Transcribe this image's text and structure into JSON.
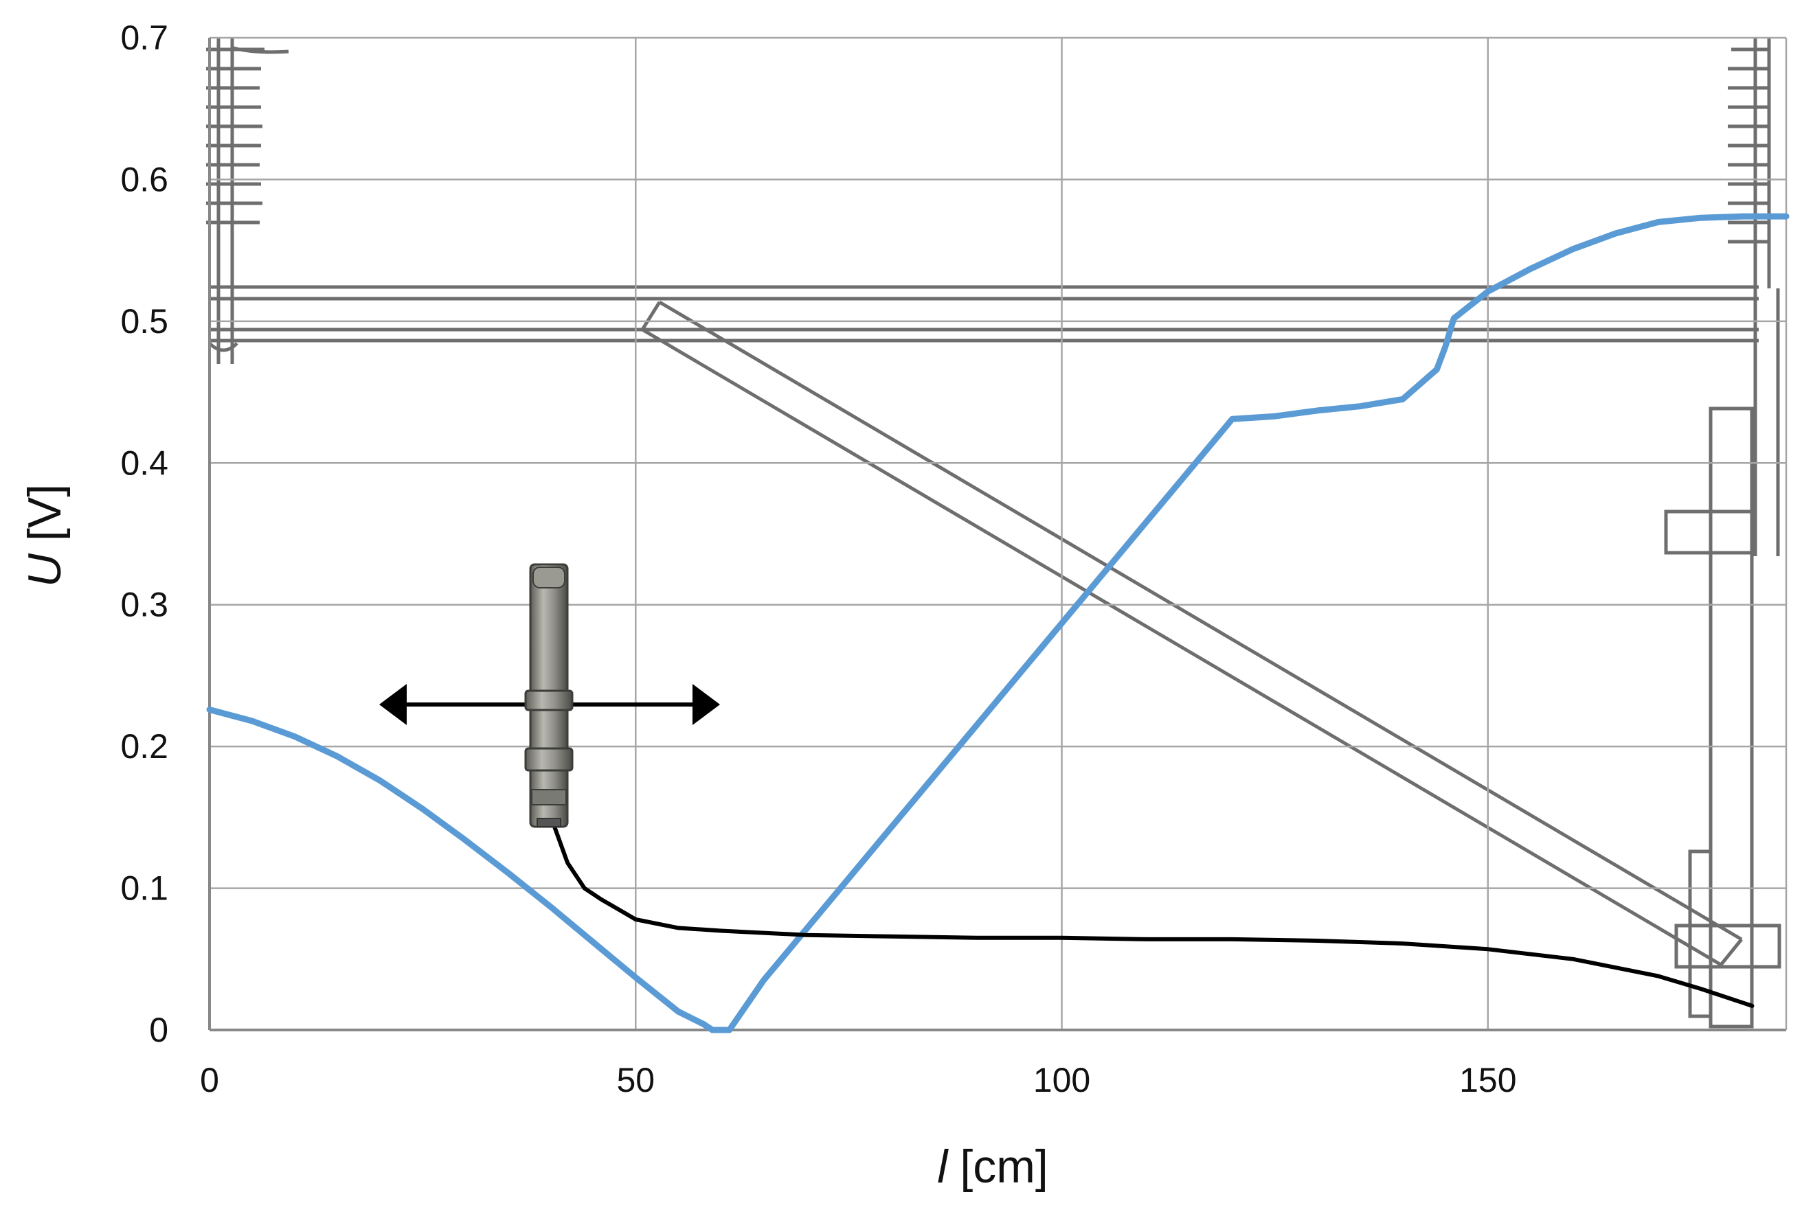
{
  "chart_data": {
    "type": "line",
    "title": "",
    "xlabel_symbol": "l",
    "xlabel_unit": "[cm]",
    "ylabel_symbol": "U",
    "ylabel_unit": "[V]",
    "xlim": [
      0,
      185
    ],
    "ylim": [
      0,
      0.7
    ],
    "x_ticks": [
      "0",
      "50",
      "100",
      "150"
    ],
    "x_tick_values": [
      0,
      50,
      100,
      150
    ],
    "y_ticks": [
      "0",
      "0.1",
      "0.2",
      "0.3",
      "0.4",
      "0.5",
      "0.6",
      "0.7"
    ],
    "y_tick_values": [
      0,
      0.1,
      0.2,
      0.3,
      0.4,
      0.5,
      0.6,
      0.7
    ],
    "grid": true,
    "series": [
      {
        "color": "#5b9bd5",
        "x": [
          0,
          5,
          10,
          15,
          20,
          25,
          30,
          35,
          40,
          45,
          50,
          55,
          58,
          59,
          60,
          61,
          65,
          70,
          75,
          80,
          85,
          90,
          95,
          100,
          105,
          110,
          115,
          120,
          125,
          130,
          135,
          140,
          144,
          145,
          146,
          150,
          155,
          160,
          165,
          170,
          175,
          180,
          185
        ],
        "y": [
          0.226,
          0.218,
          0.207,
          0.193,
          0.176,
          0.156,
          0.134,
          0.111,
          0.087,
          0.062,
          0.037,
          0.013,
          0.004,
          0.0,
          0.0,
          0.0,
          0.035,
          0.071,
          0.107,
          0.143,
          0.179,
          0.215,
          0.251,
          0.287,
          0.323,
          0.359,
          0.395,
          0.431,
          0.433,
          0.437,
          0.44,
          0.445,
          0.466,
          0.482,
          0.502,
          0.521,
          0.537,
          0.551,
          0.562,
          0.57,
          0.573,
          0.574,
          0.574
        ]
      },
      {
        "color": "#000000",
        "x": [
          40.5,
          42,
          44,
          46,
          48,
          50,
          55,
          60,
          70,
          80,
          90,
          100,
          110,
          120,
          130,
          140,
          150,
          160,
          170,
          175,
          181
        ],
        "y": [
          0.143,
          0.118,
          0.1,
          0.092,
          0.085,
          0.078,
          0.072,
          0.07,
          0.067,
          0.066,
          0.065,
          0.065,
          0.064,
          0.064,
          0.063,
          0.061,
          0.057,
          0.05,
          0.038,
          0.029,
          0.017
        ]
      }
    ]
  },
  "colors": {
    "grid": "#a6a6a6",
    "sketch": "#555555",
    "sensor_body": "#8e8e88",
    "arrow": "#000000"
  },
  "overlay": {
    "sensor_icon": "inductive-proximity-sensor-icon",
    "arrow_icon": "double-headed-arrow-icon",
    "background_sketch": "track-structure-sketch"
  }
}
